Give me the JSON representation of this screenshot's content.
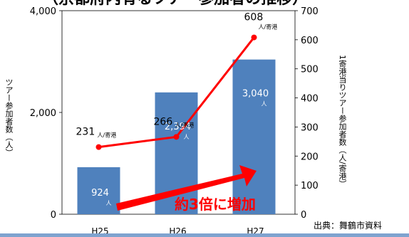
{
  "title_fragment": "（京都府内有るツアー参加者の推移）",
  "source": "出典：舞鶴市資料",
  "annotation": "約3倍に増加",
  "chart_data": {
    "type": "bar+line",
    "categories": [
      "H25",
      "H26",
      "H27"
    ],
    "series": [
      {
        "name": "",
        "type": "bar",
        "axis": "left",
        "values": [
          924,
          2394,
          3040
        ],
        "value_labels": [
          "924",
          "2,394",
          "3,040"
        ],
        "unit_label": "人"
      },
      {
        "name": "",
        "type": "line",
        "axis": "right",
        "values": [
          231,
          266,
          608
        ],
        "value_labels": [
          "231",
          "266",
          "608"
        ],
        "unit_label": "人/寄港"
      }
    ],
    "ylabel": "ツアー参加者数（人）",
    "ylabel_right": "1寄港当りツアー参加者数（人/寄港）",
    "yticks_left": [
      "0",
      "2,000",
      "4,000"
    ],
    "ylim": [
      0,
      4000
    ],
    "yticks_right": [
      "0",
      "100",
      "200",
      "300",
      "400",
      "500",
      "600",
      "700"
    ],
    "ylim_right": [
      0,
      700
    ],
    "colors": {
      "bar": "#4f81bd",
      "line": "#ff0000",
      "arrow": "#ff0000"
    },
    "grid": false,
    "legend": "none"
  }
}
